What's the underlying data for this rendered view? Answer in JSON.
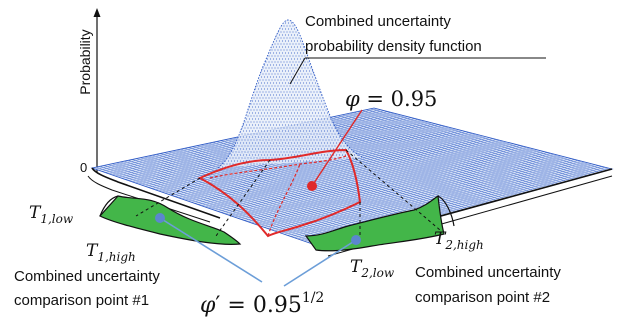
{
  "axis": {
    "ylabel": "Probability",
    "zero_label": "0"
  },
  "pdf_label": {
    "line1": "Combined uncertainty",
    "line2": "probability density function"
  },
  "phi_label": {
    "symbol": "φ",
    "equals": " = 0.95"
  },
  "phi_prime_label": {
    "symbol": "φ",
    "prime": "′",
    "equals": " = 0.95",
    "exponent": "1/2"
  },
  "thresholds": {
    "t1_low": {
      "letter": "T",
      "sub": "1,low"
    },
    "t1_high": {
      "letter": "T",
      "sub": "1,high"
    },
    "t2_low": {
      "letter": "T",
      "sub": "2,low"
    },
    "t2_high": {
      "letter": "T",
      "sub": "2,high"
    }
  },
  "comparison_point_1": {
    "line1": "Combined uncertainty",
    "line2": "comparison point #1"
  },
  "comparison_point_2": {
    "line1": "Combined uncertainty",
    "line2": "comparison point #2"
  },
  "colors": {
    "grid": "#2b57c4",
    "pdf": "#2b57c4",
    "region_outline": "#e02a2a",
    "marginal_fill": "#43b649",
    "pointer_line": "#6c9ed8",
    "marker_red": "#e02a2a",
    "marker_blue": "#5c86cf"
  }
}
